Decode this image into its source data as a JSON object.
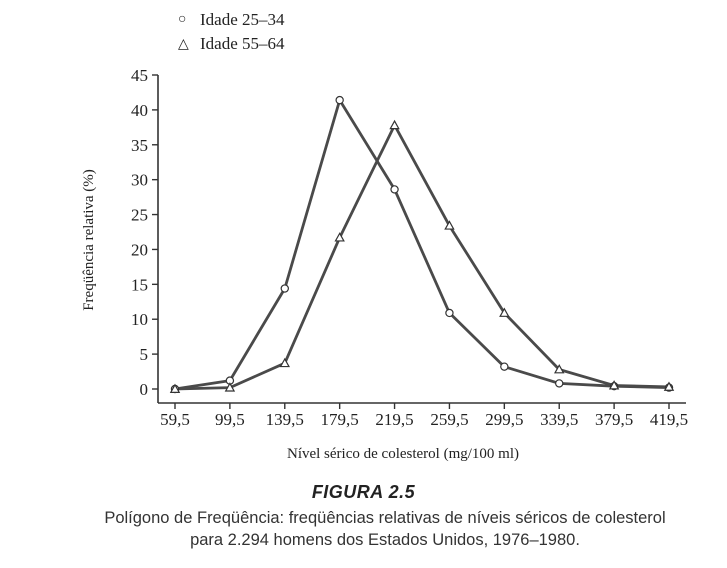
{
  "chart_data": {
    "type": "line",
    "xlabel": "Nível sérico de colesterol (mg/100 ml)",
    "ylabel": "Freqüência relativa (%)",
    "x": [
      59.5,
      99.5,
      139.5,
      179.5,
      219.5,
      259.5,
      299.5,
      339.5,
      379.5,
      419.5
    ],
    "x_tick_labels": [
      "59,5",
      "99,5",
      "139,5",
      "179,5",
      "219,5",
      "259,5",
      "299,5",
      "339,5",
      "379,5",
      "419,5"
    ],
    "y_ticks": [
      0,
      5,
      10,
      15,
      20,
      25,
      30,
      35,
      40,
      45
    ],
    "xlim": [
      59.5,
      419.5
    ],
    "ylim": [
      0,
      45
    ],
    "grid": false,
    "legend_placement": "top-left",
    "series": [
      {
        "name": "Idade 25–34",
        "marker": "circle",
        "values": [
          0.0,
          1.2,
          14.4,
          41.4,
          28.6,
          10.9,
          3.2,
          0.8,
          0.4,
          0.2
        ]
      },
      {
        "name": "Idade 55–64",
        "marker": "triangle",
        "values": [
          0.0,
          0.2,
          3.7,
          21.7,
          37.8,
          23.4,
          10.9,
          2.8,
          0.5,
          0.3
        ]
      }
    ]
  },
  "figure": {
    "label": "FIGURA 2.5",
    "caption_line1": "Polígono de Freqüência: freqüências relativas de níveis séricos de colesterol",
    "caption_line2": "para 2.294 homens dos Estados Unidos, 1976–1980."
  }
}
